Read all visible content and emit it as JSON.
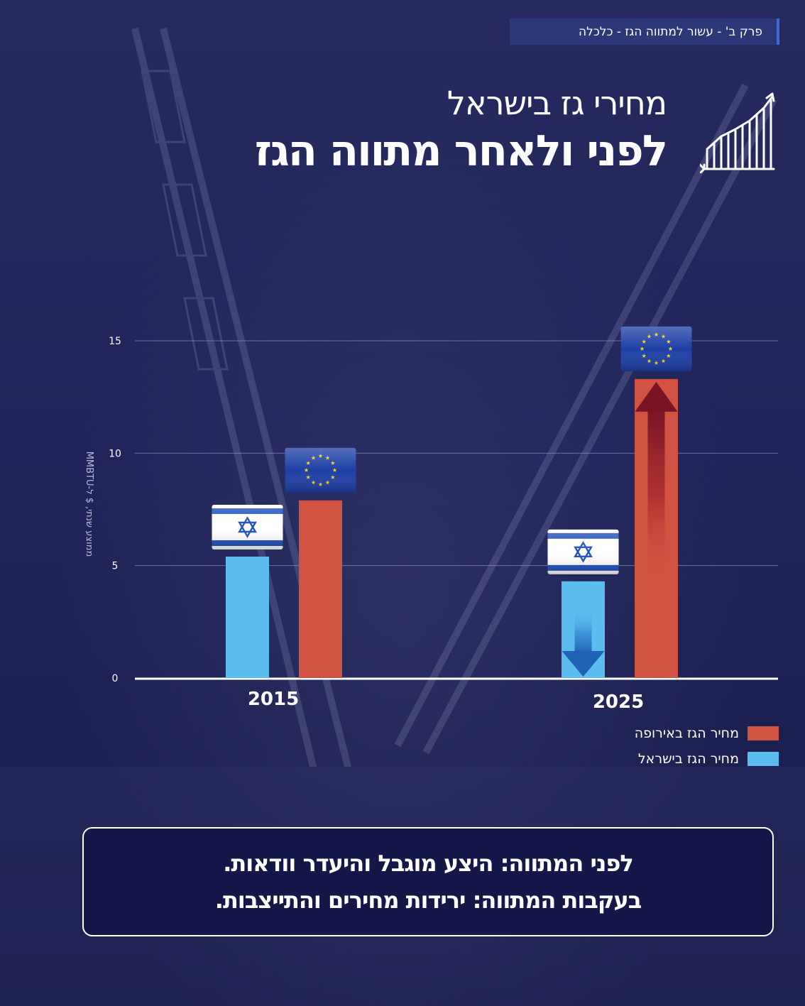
{
  "breadcrumb": "פרק ב' - עשור למתווה הגז - כלכלה",
  "header": {
    "subtitle": "מחירי גז בישראל",
    "title": "לפני ולאחר מתווה הגז"
  },
  "colors": {
    "background": "#20245a",
    "israel": "#5bbcee",
    "europe": "#d25241",
    "text": "#ffffff"
  },
  "chart_data": {
    "type": "bar",
    "ylabel": "ממוצע שנתי, $ ל-MMBTU",
    "yticks": [
      0,
      5,
      10,
      15
    ],
    "ylim": [
      0,
      15.5
    ],
    "grid": true,
    "categories": [
      "2015",
      "2025"
    ],
    "series": [
      {
        "name": "מחיר הגז בישראל",
        "color": "#5bbcee",
        "values": [
          5.4,
          4.3
        ]
      },
      {
        "name": "מחיר הגז באירופה",
        "color": "#d25241",
        "values": [
          7.9,
          13.3
        ]
      }
    ],
    "legend_position": "bottom-right"
  },
  "legend": [
    {
      "label": "מחיר הגז באירופה",
      "color": "#d25241"
    },
    {
      "label": "מחיר הגז בישראל",
      "color": "#5bbcee"
    }
  ],
  "callout": {
    "line1": "לפני המתווה: היצע מוגבל והיעדר וודאות.",
    "line2": "בעקבות המתווה: ירידות מחירים והתייצבות."
  }
}
